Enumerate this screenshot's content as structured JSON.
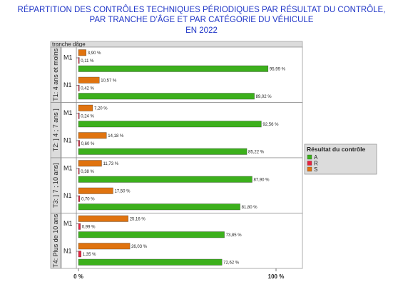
{
  "title_lines": [
    "RÉPARTITION DES CONTRÔLES TECHNIQUES PÉRIODIQUES PAR RÉSULTAT DU CONTRÔLE,",
    "PAR TRANCHE D’ÂGE ET PAR CATÉGORIE DU VÉHICULE",
    "EN 2022"
  ],
  "colors": {
    "A": "#3cb01c",
    "R": "#e8213f",
    "S": "#e0730f",
    "title": "#1f35c7"
  },
  "chart_data": {
    "type": "bar",
    "orientation": "horizontal",
    "panel_axis_label": "tranche dâge",
    "xlim": [
      0,
      100
    ],
    "x_ticks": [
      "0 %",
      "100 %"
    ],
    "legend": {
      "title": "Résultat du contrôle",
      "entries": [
        "A",
        "R",
        "S"
      ],
      "placement": "right"
    },
    "panels": [
      {
        "label": "T1: 4 ans et moins",
        "groups": [
          {
            "category": "M1",
            "S": 3.9,
            "R": 0.11,
            "A": 95.99,
            "labels": {
              "S": "3,90 %",
              "R": "0,11 %",
              "A": "95,99 %"
            }
          },
          {
            "category": "N1",
            "S": 10.57,
            "R": 0.42,
            "A": 89.02,
            "labels": {
              "S": "10,57 %",
              "R": "0,42 %",
              "A": "89,02 %"
            }
          }
        ]
      },
      {
        "label": "T2: ] 4 ; 7 ans ]",
        "groups": [
          {
            "category": "M1",
            "S": 7.2,
            "R": 0.24,
            "A": 92.56,
            "labels": {
              "S": "7,20 %",
              "R": "0,24 %",
              "A": "92,56 %"
            }
          },
          {
            "category": "N1",
            "S": 14.18,
            "R": 0.6,
            "A": 85.22,
            "labels": {
              "S": "14,18 %",
              "R": "0,60 %",
              "A": "85,22 %"
            }
          }
        ]
      },
      {
        "label": "T3: ] 7 ; 10 ans]",
        "groups": [
          {
            "category": "M1",
            "S": 11.73,
            "R": 0.38,
            "A": 87.9,
            "labels": {
              "S": "11,73 %",
              "R": "0,38 %",
              "A": "87,90 %"
            }
          },
          {
            "category": "N1",
            "S": 17.5,
            "R": 0.7,
            "A": 81.8,
            "labels": {
              "S": "17,50 %",
              "R": "0,70 %",
              "A": "81,80 %"
            }
          }
        ]
      },
      {
        "label": "T4: Plus de 10 ans",
        "groups": [
          {
            "category": "M1",
            "S": 25.16,
            "R": 0.99,
            "A": 73.85,
            "labels": {
              "S": "25,16 %",
              "R": "0,99 %",
              "A": "73,85 %"
            }
          },
          {
            "category": "N1",
            "S": 26.03,
            "R": 1.35,
            "A": 72.62,
            "labels": {
              "S": "26,03 %",
              "R": "1,35 %",
              "A": "72,62 %"
            }
          }
        ]
      }
    ]
  }
}
